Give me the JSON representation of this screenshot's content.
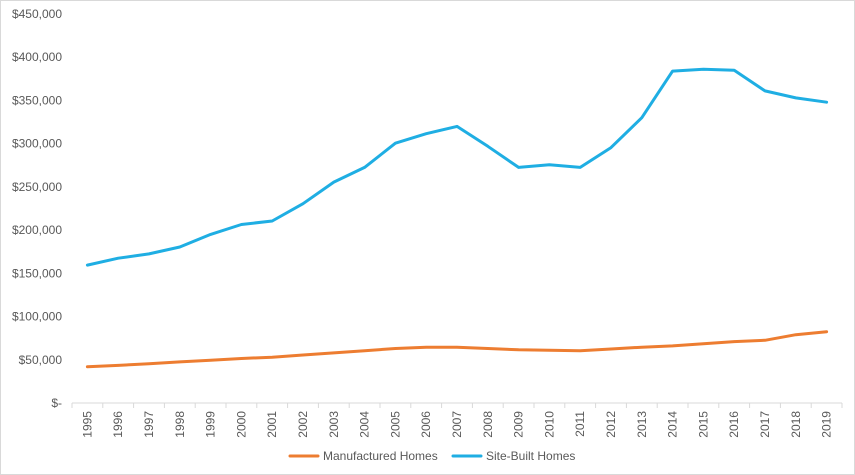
{
  "chart_data": {
    "type": "line",
    "x": [
      "1995",
      "1996",
      "1997",
      "1998",
      "1999",
      "2000",
      "2001",
      "2002",
      "2003",
      "2004",
      "2005",
      "2006",
      "2007",
      "2008",
      "2009",
      "2010",
      "2011",
      "2012",
      "2013",
      "2014",
      "2015",
      "2016",
      "2017",
      "2018",
      "2019"
    ],
    "series": [
      {
        "name": "Manufactured Homes",
        "color": "#ED7D31",
        "values": [
          42000,
          43500,
          45500,
          47500,
          49500,
          51500,
          53000,
          55500,
          58000,
          60500,
          63000,
          64500,
          64500,
          63000,
          61500,
          61000,
          60500,
          62500,
          64500,
          66000,
          68500,
          71000,
          72500,
          79000,
          82500
        ]
      },
      {
        "name": "Site-Built Homes",
        "color": "#1FAEE3",
        "values": [
          159500,
          167500,
          172500,
          180500,
          195000,
          206500,
          210500,
          230500,
          255500,
          272500,
          300500,
          311500,
          320000,
          297000,
          272500,
          275500,
          272500,
          295500,
          330000,
          384000,
          386000,
          385000,
          361000,
          353000,
          348000
        ]
      }
    ],
    "y_ticks": [
      "$-",
      "$50,000",
      "$100,000",
      "$150,000",
      "$200,000",
      "$250,000",
      "$300,000",
      "$350,000",
      "$400,000",
      "$450,000"
    ],
    "ylim": [
      0,
      450000
    ],
    "title": "",
    "xlabel": "",
    "ylabel": "",
    "grid": false,
    "legend": "bottom"
  }
}
